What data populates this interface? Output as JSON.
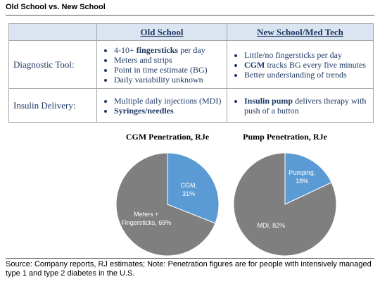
{
  "title": "Old School vs. New School",
  "table": {
    "columns": [
      "Old School",
      "New School/Med Tech"
    ],
    "rows": [
      {
        "label": "Diagnostic Tool:",
        "cells": [
          [
            [
              {
                "text": "4-10+ "
              },
              {
                "text": "fingersticks",
                "bold": true
              },
              {
                "text": " per day"
              }
            ],
            [
              {
                "text": "Meters and strips"
              }
            ],
            [
              {
                "text": "Point in time estimate (BG)"
              }
            ],
            [
              {
                "text": "Daily variability unknown"
              }
            ]
          ],
          [
            [
              {
                "text": "Little/no fingersticks per day"
              }
            ],
            [
              {
                "text": "CGM",
                "bold": true
              },
              {
                "text": " tracks BG every five minutes"
              }
            ],
            [
              {
                "text": "Better understanding of trends"
              }
            ]
          ]
        ]
      },
      {
        "label": "Insulin Delivery:",
        "cells": [
          [
            [
              {
                "text": "Multiple daily injections (MDI)"
              }
            ],
            [
              {
                "text": "Syringes/needles",
                "bold": true
              }
            ]
          ],
          [
            [
              {
                "text": "Insulin pump",
                "bold": true
              },
              {
                "text": " delivers therapy with push of a button"
              }
            ]
          ]
        ]
      }
    ]
  },
  "chart_data": [
    {
      "type": "pie",
      "title": "CGM Penetration, RJe",
      "values": [
        31,
        69
      ],
      "value_labels": [
        [
          "CGM,",
          "31%"
        ],
        [
          "Meters +",
          "Fingersticks, 69%"
        ]
      ],
      "colors": [
        "#5b9bd5",
        "#7f7f7f"
      ]
    },
    {
      "type": "pie",
      "title": "Pump Penetration, RJe",
      "values": [
        18,
        82
      ],
      "value_labels": [
        [
          "Pumping,",
          "18%"
        ],
        [
          "MDI, 82%"
        ]
      ],
      "colors": [
        "#5b9bd5",
        "#7f7f7f"
      ]
    }
  ],
  "source": "Source: Company reports, RJ estimates; Note: Penetration figures are for people with intensively managed type 1 and type 2 diabetes in the U.S."
}
